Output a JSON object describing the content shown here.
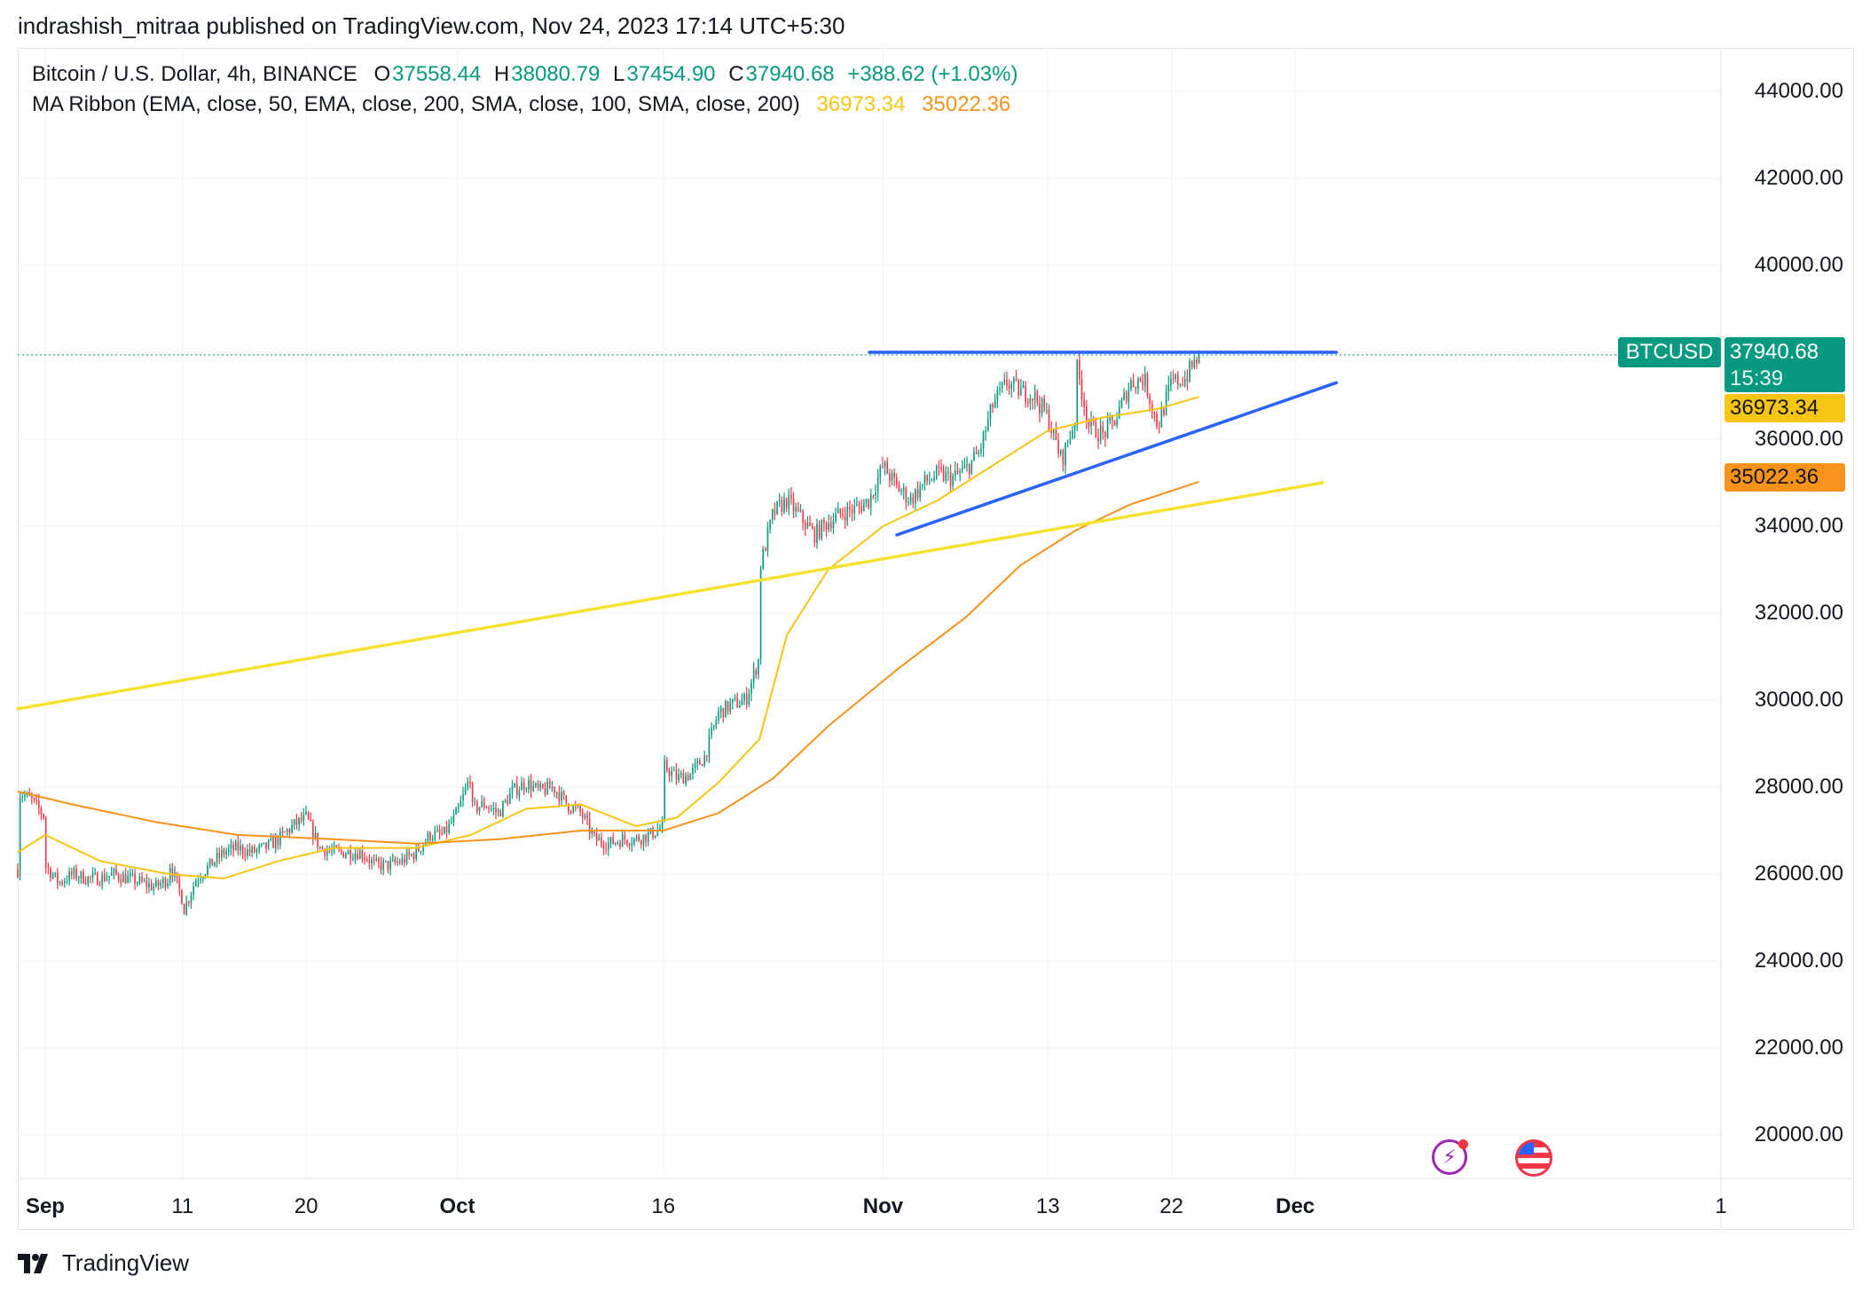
{
  "header": {
    "publisher_line": "indrashish_mitraa published on TradingView.com, Nov 24, 2023 17:14 UTC+5:30"
  },
  "legend": {
    "symbol_line": "Bitcoin / U.S. Dollar, 4h, BINANCE",
    "o_label": "O",
    "o_value": "37558.44",
    "h_label": "H",
    "h_value": "38080.79",
    "l_label": "L",
    "l_value": "37454.90",
    "c_label": "C",
    "c_value": "37940.68",
    "change": "+388.62 (+1.03%)",
    "ma_line": "MA Ribbon (EMA, close, 50, EMA, close, 200, SMA, close, 100, SMA, close, 200)",
    "ma1_value": "36973.34",
    "ma2_value": "35022.36"
  },
  "price_tag": {
    "symbol": "BTCUSD",
    "price": "37940.68",
    "countdown": "15:39",
    "ma1": "36973.34",
    "ma2": "35022.36"
  },
  "footer": {
    "brand": "TradingView"
  },
  "colors": {
    "up": "#089981",
    "down": "#f23645",
    "ma_fast": "#f7c514",
    "ma_slow": "#f7931a",
    "trend_blue": "#2962ff",
    "trend_yellow": "#f5e12f",
    "grid": "#f0f3fa"
  },
  "chart_data": {
    "type": "candlestick",
    "title": "Bitcoin / U.S. Dollar, 4h, BINANCE",
    "y_ticks": [
      "44000.00",
      "42000.00",
      "40000.00",
      "38000.00",
      "36000.00",
      "34000.00",
      "32000.00",
      "30000.00",
      "28000.00",
      "26000.00",
      "24000.00",
      "22000.00",
      "20000.00"
    ],
    "ylim": [
      19000,
      45000
    ],
    "x_ticks": [
      {
        "label": "Sep",
        "date": "2023-09-01",
        "bold": true
      },
      {
        "label": "11",
        "date": "2023-09-11",
        "bold": false
      },
      {
        "label": "20",
        "date": "2023-09-20",
        "bold": false
      },
      {
        "label": "Oct",
        "date": "2023-10-01",
        "bold": true
      },
      {
        "label": "16",
        "date": "2023-10-16",
        "bold": false
      },
      {
        "label": "Nov",
        "date": "2023-11-01",
        "bold": true
      },
      {
        "label": "13",
        "date": "2023-11-13",
        "bold": false
      },
      {
        "label": "22",
        "date": "2023-11-22",
        "bold": false
      },
      {
        "label": "Dec",
        "date": "2023-12-01",
        "bold": true
      },
      {
        "label": "1",
        "date": "2024-01-01",
        "bold": false
      }
    ],
    "xlim": [
      "2023-08-30",
      "2024-01-01"
    ],
    "price_path": [
      [
        "2023-08-30",
        26100
      ],
      [
        "2023-08-30",
        27900
      ],
      [
        "2023-08-31",
        27700
      ],
      [
        "2023-09-01",
        27300
      ],
      [
        "2023-09-01",
        26200
      ],
      [
        "2023-09-02",
        25800
      ],
      [
        "2023-09-03",
        26000
      ],
      [
        "2023-09-04",
        25900
      ],
      [
        "2023-09-05",
        25900
      ],
      [
        "2023-09-06",
        26000
      ],
      [
        "2023-09-07",
        25900
      ],
      [
        "2023-09-08",
        25800
      ],
      [
        "2023-09-09",
        25700
      ],
      [
        "2023-09-10",
        25900
      ],
      [
        "2023-09-10",
        26300
      ],
      [
        "2023-09-11",
        25400
      ],
      [
        "2023-09-11",
        25100
      ],
      [
        "2023-09-12",
        25900
      ],
      [
        "2023-09-13",
        26200
      ],
      [
        "2023-09-14",
        26500
      ],
      [
        "2023-09-15",
        26600
      ],
      [
        "2023-09-16",
        26500
      ],
      [
        "2023-09-17",
        26600
      ],
      [
        "2023-09-18",
        26800
      ],
      [
        "2023-09-19",
        27100
      ],
      [
        "2023-09-20",
        27300
      ],
      [
        "2023-09-21",
        26600
      ],
      [
        "2023-09-22",
        26500
      ],
      [
        "2023-09-23",
        26500
      ],
      [
        "2023-09-24",
        26500
      ],
      [
        "2023-09-25",
        26200
      ],
      [
        "2023-09-26",
        26200
      ],
      [
        "2023-09-27",
        26300
      ],
      [
        "2023-09-28",
        26500
      ],
      [
        "2023-09-29",
        26900
      ],
      [
        "2023-09-30",
        26900
      ],
      [
        "2023-10-01",
        27400
      ],
      [
        "2023-10-02",
        28300
      ],
      [
        "2023-10-02",
        27500
      ],
      [
        "2023-10-03",
        27600
      ],
      [
        "2023-10-04",
        27400
      ],
      [
        "2023-10-05",
        27900
      ],
      [
        "2023-10-06",
        28100
      ],
      [
        "2023-10-07",
        27900
      ],
      [
        "2023-10-08",
        28000
      ],
      [
        "2023-10-09",
        27600
      ],
      [
        "2023-10-10",
        27400
      ],
      [
        "2023-10-11",
        26800
      ],
      [
        "2023-10-12",
        26700
      ],
      [
        "2023-10-13",
        26800
      ],
      [
        "2023-10-14",
        26800
      ],
      [
        "2023-10-15",
        26900
      ],
      [
        "2023-10-16",
        27100
      ],
      [
        "2023-10-16",
        28500
      ],
      [
        "2023-10-17",
        28200
      ],
      [
        "2023-10-18",
        28300
      ],
      [
        "2023-10-19",
        28700
      ],
      [
        "2023-10-20",
        29700
      ],
      [
        "2023-10-21",
        29900
      ],
      [
        "2023-10-22",
        30000
      ],
      [
        "2023-10-23",
        31000
      ],
      [
        "2023-10-23",
        33000
      ],
      [
        "2023-10-24",
        34300
      ],
      [
        "2023-10-25",
        34600
      ],
      [
        "2023-10-26",
        34200
      ],
      [
        "2023-10-27",
        33800
      ],
      [
        "2023-10-28",
        34100
      ],
      [
        "2023-10-29",
        34300
      ],
      [
        "2023-10-30",
        34400
      ],
      [
        "2023-10-31",
        34600
      ],
      [
        "2023-11-01",
        35400
      ],
      [
        "2023-11-02",
        34900
      ],
      [
        "2023-11-03",
        34600
      ],
      [
        "2023-11-04",
        35000
      ],
      [
        "2023-11-05",
        35200
      ],
      [
        "2023-11-06",
        35100
      ],
      [
        "2023-11-07",
        35300
      ],
      [
        "2023-11-08",
        35700
      ],
      [
        "2023-11-09",
        36800
      ],
      [
        "2023-11-10",
        37300
      ],
      [
        "2023-11-11",
        37100
      ],
      [
        "2023-11-12",
        37000
      ],
      [
        "2023-11-13",
        36500
      ],
      [
        "2023-11-14",
        35500
      ],
      [
        "2023-11-15",
        36500
      ],
      [
        "2023-11-15",
        37800
      ],
      [
        "2023-11-16",
        36300
      ],
      [
        "2023-11-17",
        36100
      ],
      [
        "2023-11-18",
        36500
      ],
      [
        "2023-11-19",
        37300
      ],
      [
        "2023-11-20",
        37400
      ],
      [
        "2023-11-21",
        36300
      ],
      [
        "2023-11-22",
        37300
      ],
      [
        "2023-11-23",
        37400
      ],
      [
        "2023-11-24",
        37940
      ]
    ],
    "ma_fast": [
      [
        "2023-08-30",
        26500
      ],
      [
        "2023-09-01",
        26900
      ],
      [
        "2023-09-05",
        26300
      ],
      [
        "2023-09-10",
        26000
      ],
      [
        "2023-09-14",
        25900
      ],
      [
        "2023-09-18",
        26300
      ],
      [
        "2023-09-22",
        26600
      ],
      [
        "2023-09-28",
        26600
      ],
      [
        "2023-10-02",
        26900
      ],
      [
        "2023-10-06",
        27500
      ],
      [
        "2023-10-10",
        27600
      ],
      [
        "2023-10-14",
        27100
      ],
      [
        "2023-10-17",
        27300
      ],
      [
        "2023-10-20",
        28100
      ],
      [
        "2023-10-23",
        29100
      ],
      [
        "2023-10-25",
        31500
      ],
      [
        "2023-10-28",
        33000
      ],
      [
        "2023-11-01",
        34000
      ],
      [
        "2023-11-05",
        34600
      ],
      [
        "2023-11-09",
        35400
      ],
      [
        "2023-11-13",
        36200
      ],
      [
        "2023-11-17",
        36500
      ],
      [
        "2023-11-21",
        36700
      ],
      [
        "2023-11-24",
        36973
      ]
    ],
    "ma_slow": [
      [
        "2023-08-30",
        27900
      ],
      [
        "2023-09-03",
        27600
      ],
      [
        "2023-09-09",
        27200
      ],
      [
        "2023-09-15",
        26900
      ],
      [
        "2023-09-22",
        26800
      ],
      [
        "2023-09-28",
        26700
      ],
      [
        "2023-10-04",
        26800
      ],
      [
        "2023-10-10",
        27000
      ],
      [
        "2023-10-16",
        27000
      ],
      [
        "2023-10-20",
        27400
      ],
      [
        "2023-10-24",
        28200
      ],
      [
        "2023-10-28",
        29400
      ],
      [
        "2023-11-02",
        30700
      ],
      [
        "2023-11-07",
        31900
      ],
      [
        "2023-11-11",
        33100
      ],
      [
        "2023-11-15",
        33900
      ],
      [
        "2023-11-19",
        34500
      ],
      [
        "2023-11-24",
        35022
      ]
    ],
    "trendlines": [
      {
        "name": "resistance",
        "color": "blue",
        "from": [
          "2023-10-31",
          38000
        ],
        "to": [
          "2023-12-04",
          38000
        ]
      },
      {
        "name": "rising-support",
        "color": "blue",
        "from": [
          "2023-11-02",
          33800
        ],
        "to": [
          "2023-12-04",
          37300
        ]
      },
      {
        "name": "long-support",
        "color": "yellow",
        "from": [
          "2023-08-30",
          29800
        ],
        "to": [
          "2023-12-03",
          35000
        ]
      }
    ]
  }
}
